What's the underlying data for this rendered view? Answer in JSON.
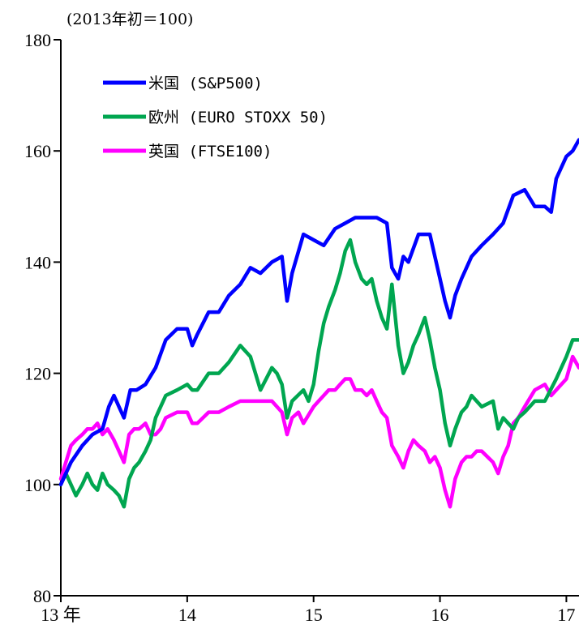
{
  "chart_data": {
    "type": "line",
    "unit_label": "(2013年初＝100)",
    "ylim": [
      80,
      180
    ],
    "yticks": [
      80,
      100,
      120,
      140,
      160,
      180
    ],
    "xlim": [
      0,
      4.1
    ],
    "xticks": [
      {
        "label": "13 年",
        "value": 0
      },
      {
        "label": "14",
        "value": 1
      },
      {
        "label": "15",
        "value": 2
      },
      {
        "label": "16",
        "value": 3
      },
      {
        "label": "17",
        "value": 4
      }
    ],
    "grid": false,
    "legend_position": "top-left",
    "series": [
      {
        "name": "米国 (S&P500)",
        "color": "#0000ff",
        "points": [
          [
            0.0,
            100
          ],
          [
            0.08,
            104
          ],
          [
            0.17,
            107
          ],
          [
            0.25,
            109
          ],
          [
            0.33,
            110
          ],
          [
            0.38,
            114
          ],
          [
            0.42,
            116
          ],
          [
            0.46,
            114
          ],
          [
            0.5,
            112
          ],
          [
            0.55,
            117
          ],
          [
            0.6,
            117
          ],
          [
            0.67,
            118
          ],
          [
            0.75,
            121
          ],
          [
            0.83,
            126
          ],
          [
            0.92,
            128
          ],
          [
            1.0,
            128
          ],
          [
            1.04,
            125
          ],
          [
            1.08,
            127
          ],
          [
            1.17,
            131
          ],
          [
            1.25,
            131
          ],
          [
            1.33,
            134
          ],
          [
            1.42,
            136
          ],
          [
            1.5,
            139
          ],
          [
            1.58,
            138
          ],
          [
            1.67,
            140
          ],
          [
            1.75,
            141
          ],
          [
            1.79,
            133
          ],
          [
            1.83,
            138
          ],
          [
            1.92,
            145
          ],
          [
            2.0,
            144
          ],
          [
            2.08,
            143
          ],
          [
            2.17,
            146
          ],
          [
            2.25,
            147
          ],
          [
            2.33,
            148
          ],
          [
            2.42,
            148
          ],
          [
            2.5,
            148
          ],
          [
            2.58,
            147
          ],
          [
            2.62,
            139
          ],
          [
            2.67,
            137
          ],
          [
            2.71,
            141
          ],
          [
            2.75,
            140
          ],
          [
            2.83,
            145
          ],
          [
            2.92,
            145
          ],
          [
            2.96,
            141
          ],
          [
            3.0,
            137
          ],
          [
            3.04,
            133
          ],
          [
            3.08,
            130
          ],
          [
            3.12,
            134
          ],
          [
            3.17,
            137
          ],
          [
            3.25,
            141
          ],
          [
            3.33,
            143
          ],
          [
            3.42,
            145
          ],
          [
            3.5,
            147
          ],
          [
            3.58,
            152
          ],
          [
            3.67,
            153
          ],
          [
            3.75,
            150
          ],
          [
            3.83,
            150
          ],
          [
            3.88,
            149
          ],
          [
            3.92,
            155
          ],
          [
            4.0,
            159
          ],
          [
            4.05,
            160
          ],
          [
            4.1,
            162
          ]
        ]
      },
      {
        "name": "欧州 (EURO STOXX 50)",
        "color": "#00a650",
        "points": [
          [
            0.0,
            100
          ],
          [
            0.04,
            102
          ],
          [
            0.08,
            100
          ],
          [
            0.12,
            98
          ],
          [
            0.17,
            100
          ],
          [
            0.21,
            102
          ],
          [
            0.25,
            100
          ],
          [
            0.29,
            99
          ],
          [
            0.33,
            102
          ],
          [
            0.37,
            100
          ],
          [
            0.42,
            99
          ],
          [
            0.46,
            98
          ],
          [
            0.5,
            96
          ],
          [
            0.54,
            101
          ],
          [
            0.58,
            103
          ],
          [
            0.62,
            104
          ],
          [
            0.67,
            106
          ],
          [
            0.71,
            108
          ],
          [
            0.75,
            112
          ],
          [
            0.79,
            114
          ],
          [
            0.83,
            116
          ],
          [
            0.92,
            117
          ],
          [
            1.0,
            118
          ],
          [
            1.04,
            117
          ],
          [
            1.08,
            117
          ],
          [
            1.17,
            120
          ],
          [
            1.25,
            120
          ],
          [
            1.33,
            122
          ],
          [
            1.42,
            125
          ],
          [
            1.5,
            123
          ],
          [
            1.58,
            117
          ],
          [
            1.67,
            121
          ],
          [
            1.71,
            120
          ],
          [
            1.75,
            118
          ],
          [
            1.79,
            112
          ],
          [
            1.83,
            115
          ],
          [
            1.92,
            117
          ],
          [
            1.96,
            115
          ],
          [
            2.0,
            118
          ],
          [
            2.04,
            124
          ],
          [
            2.08,
            129
          ],
          [
            2.12,
            132
          ],
          [
            2.17,
            135
          ],
          [
            2.21,
            138
          ],
          [
            2.25,
            142
          ],
          [
            2.29,
            144
          ],
          [
            2.33,
            140
          ],
          [
            2.38,
            137
          ],
          [
            2.42,
            136
          ],
          [
            2.46,
            137
          ],
          [
            2.5,
            133
          ],
          [
            2.54,
            130
          ],
          [
            2.58,
            128
          ],
          [
            2.62,
            136
          ],
          [
            2.67,
            125
          ],
          [
            2.71,
            120
          ],
          [
            2.75,
            122
          ],
          [
            2.79,
            125
          ],
          [
            2.83,
            127
          ],
          [
            2.88,
            130
          ],
          [
            2.92,
            126
          ],
          [
            2.96,
            121
          ],
          [
            3.0,
            117
          ],
          [
            3.04,
            111
          ],
          [
            3.08,
            107
          ],
          [
            3.12,
            110
          ],
          [
            3.17,
            113
          ],
          [
            3.21,
            114
          ],
          [
            3.25,
            116
          ],
          [
            3.33,
            114
          ],
          [
            3.42,
            115
          ],
          [
            3.46,
            110
          ],
          [
            3.5,
            112
          ],
          [
            3.54,
            111
          ],
          [
            3.58,
            110
          ],
          [
            3.62,
            112
          ],
          [
            3.67,
            113
          ],
          [
            3.75,
            115
          ],
          [
            3.83,
            115
          ],
          [
            3.92,
            119
          ],
          [
            4.0,
            123
          ],
          [
            4.05,
            126
          ],
          [
            4.1,
            126
          ]
        ]
      },
      {
        "name": "英国 (FTSE100)",
        "color": "#ff00ff",
        "points": [
          [
            0.0,
            101
          ],
          [
            0.04,
            104
          ],
          [
            0.08,
            107
          ],
          [
            0.12,
            108
          ],
          [
            0.17,
            109
          ],
          [
            0.21,
            110
          ],
          [
            0.25,
            110
          ],
          [
            0.29,
            111
          ],
          [
            0.33,
            109
          ],
          [
            0.37,
            110
          ],
          [
            0.42,
            108
          ],
          [
            0.46,
            106
          ],
          [
            0.5,
            104
          ],
          [
            0.54,
            109
          ],
          [
            0.58,
            110
          ],
          [
            0.62,
            110
          ],
          [
            0.67,
            111
          ],
          [
            0.71,
            109
          ],
          [
            0.75,
            109
          ],
          [
            0.79,
            110
          ],
          [
            0.83,
            112
          ],
          [
            0.92,
            113
          ],
          [
            1.0,
            113
          ],
          [
            1.04,
            111
          ],
          [
            1.08,
            111
          ],
          [
            1.17,
            113
          ],
          [
            1.25,
            113
          ],
          [
            1.33,
            114
          ],
          [
            1.42,
            115
          ],
          [
            1.5,
            115
          ],
          [
            1.58,
            115
          ],
          [
            1.67,
            115
          ],
          [
            1.71,
            114
          ],
          [
            1.75,
            113
          ],
          [
            1.79,
            109
          ],
          [
            1.83,
            112
          ],
          [
            1.88,
            113
          ],
          [
            1.92,
            111
          ],
          [
            2.0,
            114
          ],
          [
            2.04,
            115
          ],
          [
            2.08,
            116
          ],
          [
            2.12,
            117
          ],
          [
            2.17,
            117
          ],
          [
            2.21,
            118
          ],
          [
            2.25,
            119
          ],
          [
            2.29,
            119
          ],
          [
            2.33,
            117
          ],
          [
            2.38,
            117
          ],
          [
            2.42,
            116
          ],
          [
            2.46,
            117
          ],
          [
            2.5,
            115
          ],
          [
            2.54,
            113
          ],
          [
            2.58,
            112
          ],
          [
            2.62,
            107
          ],
          [
            2.67,
            105
          ],
          [
            2.71,
            103
          ],
          [
            2.75,
            106
          ],
          [
            2.79,
            108
          ],
          [
            2.83,
            107
          ],
          [
            2.88,
            106
          ],
          [
            2.92,
            104
          ],
          [
            2.96,
            105
          ],
          [
            3.0,
            103
          ],
          [
            3.04,
            99
          ],
          [
            3.08,
            96
          ],
          [
            3.12,
            101
          ],
          [
            3.17,
            104
          ],
          [
            3.21,
            105
          ],
          [
            3.25,
            105
          ],
          [
            3.29,
            106
          ],
          [
            3.33,
            106
          ],
          [
            3.42,
            104
          ],
          [
            3.46,
            102
          ],
          [
            3.5,
            105
          ],
          [
            3.54,
            107
          ],
          [
            3.58,
            111
          ],
          [
            3.62,
            112
          ],
          [
            3.67,
            114
          ],
          [
            3.75,
            117
          ],
          [
            3.83,
            118
          ],
          [
            3.88,
            116
          ],
          [
            3.92,
            117
          ],
          [
            4.0,
            119
          ],
          [
            4.05,
            123
          ],
          [
            4.1,
            121
          ]
        ]
      }
    ]
  }
}
